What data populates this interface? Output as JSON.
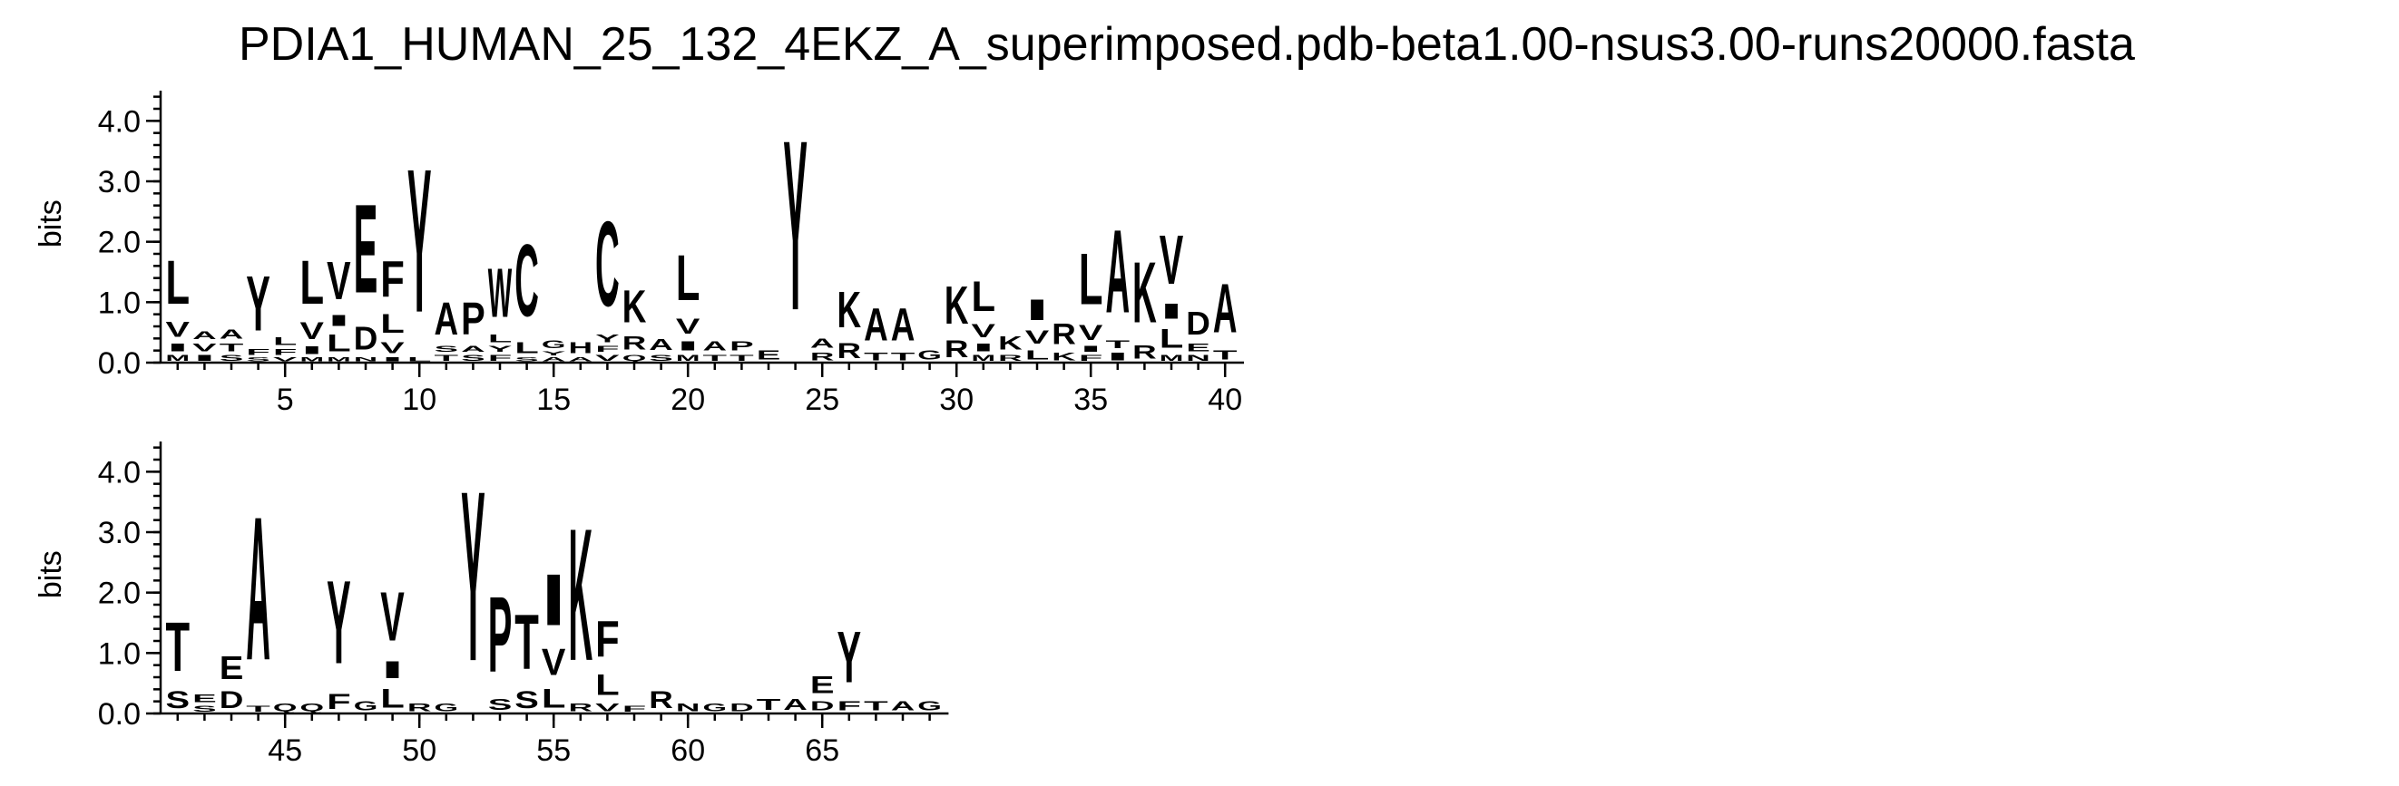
{
  "title": "PDIA1_HUMAN_25_132_4EKZ_A_superimposed.pdb-beta1.00-nsus3.00-runs20000.fasta",
  "chart_data": {
    "type": "sequence-logo",
    "ylabel": "bits",
    "ylim": [
      0,
      4.0
    ],
    "y_ticks": [
      "0.0",
      "1.0",
      "2.0",
      "3.0",
      "4.0"
    ],
    "rows": [
      {
        "start": 1,
        "end": 40,
        "x_ticks": [
          "5",
          "10",
          "15",
          "20",
          "25",
          "30",
          "35",
          "40"
        ]
      },
      {
        "start": 41,
        "end": 69,
        "x_ticks": [
          "45",
          "50",
          "55",
          "60",
          "65"
        ]
      }
    ],
    "columns": [
      {
        "pos": 1,
        "letters": [
          [
            "M",
            0.15
          ],
          [
            "I",
            0.2
          ],
          [
            "V",
            0.4
          ],
          [
            "L",
            1.15
          ]
        ]
      },
      {
        "pos": 2,
        "letters": [
          [
            "I",
            0.15
          ],
          [
            "V",
            0.2
          ],
          [
            "A",
            0.2
          ]
        ]
      },
      {
        "pos": 3,
        "letters": [
          [
            "S",
            0.15
          ],
          [
            "T",
            0.2
          ],
          [
            "A",
            0.25
          ]
        ]
      },
      {
        "pos": 4,
        "letters": [
          [
            "S",
            0.1
          ],
          [
            "F",
            0.15
          ],
          [
            "Y",
            1.45
          ]
        ]
      },
      {
        "pos": 5,
        "letters": [
          [
            "V",
            0.1
          ],
          [
            "F",
            0.15
          ],
          [
            "L",
            0.2
          ]
        ]
      },
      {
        "pos": 6,
        "letters": [
          [
            "M",
            0.1
          ],
          [
            "I",
            0.2
          ],
          [
            "V",
            0.45
          ],
          [
            "L",
            1.15
          ]
        ]
      },
      {
        "pos": 7,
        "letters": [
          [
            "M",
            0.1
          ],
          [
            "L",
            0.45
          ],
          [
            "I",
            0.3
          ],
          [
            "V",
            1.0
          ]
        ]
      },
      {
        "pos": 8,
        "letters": [
          [
            "N",
            0.1
          ],
          [
            "D",
            0.6
          ],
          [
            "E",
            2.35
          ]
        ]
      },
      {
        "pos": 9,
        "letters": [
          [
            "I",
            0.1
          ],
          [
            "V",
            0.3
          ],
          [
            "L",
            0.5
          ],
          [
            "F",
            0.95
          ]
        ]
      },
      {
        "pos": 10,
        "letters": [
          [
            "L",
            0.1
          ],
          [
            "Y",
            3.8
          ]
        ]
      },
      {
        "pos": 11,
        "letters": [
          [
            "T",
            0.15
          ],
          [
            "S",
            0.15
          ],
          [
            "A",
            0.85
          ]
        ]
      },
      {
        "pos": 12,
        "letters": [
          [
            "S",
            0.15
          ],
          [
            "A",
            0.15
          ],
          [
            "P",
            0.85
          ]
        ]
      },
      {
        "pos": 13,
        "letters": [
          [
            "F",
            0.15
          ],
          [
            "Y",
            0.15
          ],
          [
            "L",
            0.2
          ],
          [
            "W",
            1.3
          ]
        ]
      },
      {
        "pos": 14,
        "letters": [
          [
            "S",
            0.1
          ],
          [
            "L",
            0.3
          ],
          [
            "C",
            1.9
          ]
        ]
      },
      {
        "pos": 15,
        "letters": [
          [
            "A",
            0.1
          ],
          [
            "Y",
            0.1
          ],
          [
            "G",
            0.2
          ]
        ]
      },
      {
        "pos": 16,
        "letters": [
          [
            "A",
            0.1
          ],
          [
            "H",
            0.3
          ]
        ]
      },
      {
        "pos": 17,
        "letters": [
          [
            "V",
            0.15
          ],
          [
            "F",
            0.15
          ],
          [
            "Y",
            0.2
          ],
          [
            "C",
            2.25
          ]
        ]
      },
      {
        "pos": 18,
        "letters": [
          [
            "Q",
            0.15
          ],
          [
            "R",
            0.35
          ],
          [
            "K",
            0.85
          ]
        ]
      },
      {
        "pos": 19,
        "letters": [
          [
            "S",
            0.15
          ],
          [
            "A",
            0.3
          ]
        ]
      },
      {
        "pos": 20,
        "letters": [
          [
            "M",
            0.15
          ],
          [
            "I",
            0.25
          ],
          [
            "V",
            0.4
          ],
          [
            "L",
            1.2
          ]
        ]
      },
      {
        "pos": 21,
        "letters": [
          [
            "T",
            0.15
          ],
          [
            "A",
            0.25
          ]
        ]
      },
      {
        "pos": 22,
        "letters": [
          [
            "T",
            0.15
          ],
          [
            "P",
            0.25
          ]
        ]
      },
      {
        "pos": 23,
        "letters": [
          [
            "E",
            0.25
          ]
        ]
      },
      {
        "pos": 24,
        "letters": [
          [
            "Y",
            4.5
          ]
        ]
      },
      {
        "pos": 25,
        "letters": [
          [
            "R",
            0.2
          ],
          [
            "A",
            0.25
          ]
        ]
      },
      {
        "pos": 26,
        "letters": [
          [
            "R",
            0.4
          ],
          [
            "K",
            0.95
          ]
        ]
      },
      {
        "pos": 27,
        "letters": [
          [
            "T",
            0.2
          ],
          [
            "A",
            0.85
          ]
        ]
      },
      {
        "pos": 28,
        "letters": [
          [
            "T",
            0.2
          ],
          [
            "A",
            0.85
          ]
        ]
      },
      {
        "pos": 29,
        "letters": [
          [
            "G",
            0.25
          ]
        ]
      },
      {
        "pos": 30,
        "letters": [
          [
            "R",
            0.45
          ],
          [
            "K",
            1.0
          ]
        ]
      },
      {
        "pos": 31,
        "letters": [
          [
            "M",
            0.15
          ],
          [
            "I",
            0.2
          ],
          [
            "V",
            0.35
          ],
          [
            "L",
            0.8
          ]
        ]
      },
      {
        "pos": 32,
        "letters": [
          [
            "R",
            0.15
          ],
          [
            "K",
            0.35
          ]
        ]
      },
      {
        "pos": 33,
        "letters": [
          [
            "L",
            0.25
          ],
          [
            "V",
            0.35
          ],
          [
            "I",
            0.55
          ]
        ]
      },
      {
        "pos": 34,
        "letters": [
          [
            "K",
            0.2
          ],
          [
            "R",
            0.55
          ]
        ]
      },
      {
        "pos": 35,
        "letters": [
          [
            "F",
            0.15
          ],
          [
            "I",
            0.15
          ],
          [
            "V",
            0.4
          ],
          [
            "L",
            1.35
          ]
        ]
      },
      {
        "pos": 36,
        "letters": [
          [
            "I",
            0.2
          ],
          [
            "T",
            0.2
          ],
          [
            "A",
            2.2
          ]
        ]
      },
      {
        "pos": 37,
        "letters": [
          [
            "R",
            0.35
          ],
          [
            "K",
            1.6
          ]
        ]
      },
      {
        "pos": 38,
        "letters": [
          [
            "M",
            0.15
          ],
          [
            "L",
            0.5
          ],
          [
            "I",
            0.4
          ],
          [
            "V",
            1.3
          ]
        ]
      },
      {
        "pos": 39,
        "letters": [
          [
            "N",
            0.15
          ],
          [
            "E",
            0.2
          ],
          [
            "D",
            0.6
          ]
        ]
      },
      {
        "pos": 40,
        "letters": [
          [
            "T",
            0.25
          ],
          [
            "A",
            1.3
          ]
        ]
      },
      {
        "pos": 41,
        "letters": [
          [
            "S",
            0.45
          ],
          [
            "T",
            1.3
          ]
        ]
      },
      {
        "pos": 42,
        "letters": [
          [
            "S",
            0.15
          ],
          [
            "E",
            0.2
          ]
        ]
      },
      {
        "pos": 43,
        "letters": [
          [
            "D",
            0.45
          ],
          [
            "E",
            0.6
          ]
        ]
      },
      {
        "pos": 44,
        "letters": [
          [
            "T",
            0.15
          ],
          [
            "A",
            3.8
          ]
        ]
      },
      {
        "pos": 45,
        "letters": [
          [
            "Q",
            0.2
          ]
        ]
      },
      {
        "pos": 46,
        "letters": [
          [
            "Q",
            0.2
          ]
        ]
      },
      {
        "pos": 47,
        "letters": [
          [
            "F",
            0.4
          ],
          [
            "Y",
            2.2
          ]
        ]
      },
      {
        "pos": 48,
        "letters": [
          [
            "G",
            0.25
          ]
        ]
      },
      {
        "pos": 49,
        "letters": [
          [
            "L",
            0.5
          ],
          [
            "I",
            0.45
          ],
          [
            "V",
            1.3
          ]
        ]
      },
      {
        "pos": 50,
        "letters": [
          [
            "R",
            0.2
          ]
        ]
      },
      {
        "pos": 51,
        "letters": [
          [
            "G",
            0.2
          ]
        ]
      },
      {
        "pos": 52,
        "letters": [
          [
            "Y",
            4.5
          ]
        ]
      },
      {
        "pos": 53,
        "letters": [
          [
            "S",
            0.3
          ],
          [
            "P",
            2.0
          ]
        ]
      },
      {
        "pos": 54,
        "letters": [
          [
            "S",
            0.45
          ],
          [
            "T",
            1.45
          ]
        ]
      },
      {
        "pos": 55,
        "letters": [
          [
            "L",
            0.5
          ],
          [
            "V",
            0.7
          ],
          [
            "I",
            1.35
          ]
        ]
      },
      {
        "pos": 56,
        "letters": [
          [
            "R",
            0.2
          ],
          [
            "K",
            3.5
          ]
        ]
      },
      {
        "pos": 57,
        "letters": [
          [
            "V",
            0.2
          ],
          [
            "L",
            0.55
          ],
          [
            "F",
            0.95
          ]
        ]
      },
      {
        "pos": 58,
        "letters": [
          [
            "F",
            0.15
          ]
        ]
      },
      {
        "pos": 59,
        "letters": [
          [
            "R",
            0.45
          ]
        ]
      },
      {
        "pos": 60,
        "letters": [
          [
            "N",
            0.2
          ]
        ]
      },
      {
        "pos": 61,
        "letters": [
          [
            "G",
            0.2
          ]
        ]
      },
      {
        "pos": 62,
        "letters": [
          [
            "D",
            0.2
          ]
        ]
      },
      {
        "pos": 63,
        "letters": [
          [
            "T",
            0.3
          ]
        ]
      },
      {
        "pos": 64,
        "letters": [
          [
            "A",
            0.3
          ]
        ]
      },
      {
        "pos": 65,
        "letters": [
          [
            "D",
            0.25
          ],
          [
            "E",
            0.45
          ]
        ]
      },
      {
        "pos": 66,
        "letters": [
          [
            "F",
            0.25
          ],
          [
            "Y",
            1.35
          ]
        ]
      },
      {
        "pos": 67,
        "letters": [
          [
            "T",
            0.25
          ]
        ]
      },
      {
        "pos": 68,
        "letters": [
          [
            "A",
            0.25
          ]
        ]
      },
      {
        "pos": 69,
        "letters": [
          [
            "G",
            0.25
          ]
        ]
      }
    ]
  }
}
